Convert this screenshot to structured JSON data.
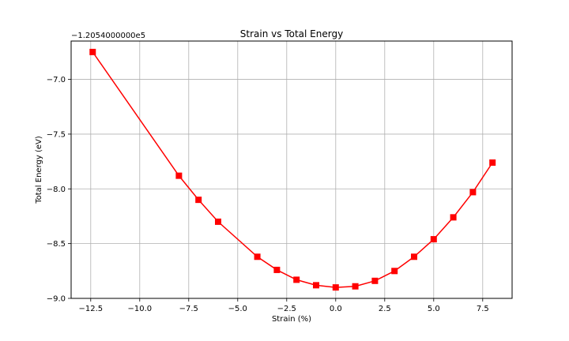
{
  "chart_data": {
    "type": "line",
    "title": "Strain vs Total Energy",
    "xlabel": "Strain (%)",
    "ylabel": "Total Energy (eV)",
    "y_offset_label": "−1.2054000000e5",
    "xlim": [
      -13.5,
      9.0
    ],
    "ylim": [
      -9.0,
      -6.65
    ],
    "x_ticks": [
      -12.5,
      -10.0,
      -7.5,
      -5.0,
      -2.5,
      0.0,
      2.5,
      5.0,
      7.5
    ],
    "x_tick_labels": [
      "−12.5",
      "−10.0",
      "−7.5",
      "−5.0",
      "−2.5",
      "0.0",
      "2.5",
      "5.0",
      "7.5"
    ],
    "y_ticks": [
      -9.0,
      -8.5,
      -8.0,
      -7.5,
      -7.0
    ],
    "y_tick_labels": [
      "−9.0",
      "−8.5",
      "−8.0",
      "−7.5",
      "−7.0"
    ],
    "grid": true,
    "series": [
      {
        "color": "#ff0000",
        "marker": "square",
        "x": [
          -12.4,
          -8.0,
          -7.0,
          -6.0,
          -4.0,
          -3.0,
          -2.0,
          -1.0,
          0.0,
          1.0,
          2.0,
          3.0,
          4.0,
          5.0,
          6.0,
          7.0,
          8.0
        ],
        "y": [
          -6.75,
          -7.88,
          -8.1,
          -8.3,
          -8.62,
          -8.74,
          -8.83,
          -8.88,
          -8.9,
          -8.89,
          -8.84,
          -8.75,
          -8.62,
          -8.46,
          -8.26,
          -8.03,
          -7.76
        ]
      }
    ]
  }
}
